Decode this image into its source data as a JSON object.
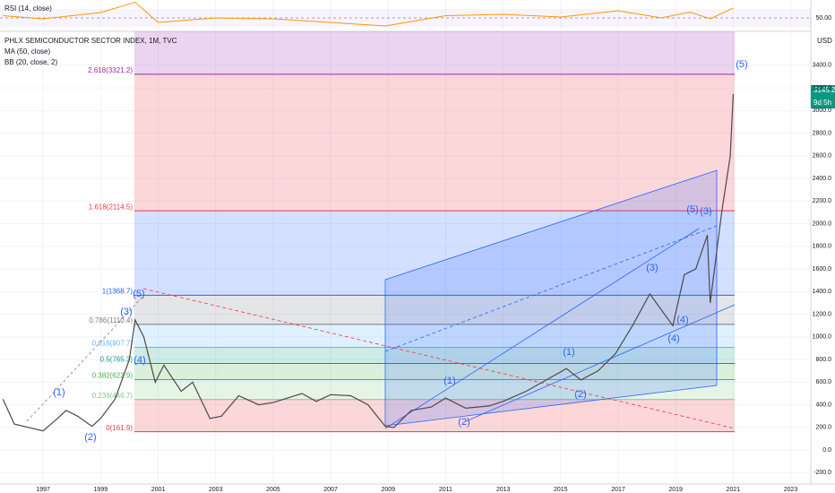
{
  "chart_data": {
    "type": "line",
    "title": "PHLX SEMICONDUCTOR SECTOR INDEX, 1M, TVC",
    "indicators": [
      "MA (50, close)",
      "BB (20, close, 2)"
    ],
    "currency": "USD",
    "countdown": "9d 5h",
    "color": "#4a4a4a",
    "x": [
      1995.6,
      1996,
      1996.5,
      1997,
      1997.5,
      1997.8,
      1998.2,
      1998.7,
      1999,
      1999.5,
      2000,
      2000.2,
      2000.5,
      2000.9,
      2001.2,
      2001.8,
      2002.2,
      2002.8,
      2003.2,
      2003.8,
      2004.5,
      2005,
      2005.5,
      2006,
      2006.5,
      2007,
      2007.7,
      2008.3,
      2008.9,
      2009.2,
      2009.8,
      2010.5,
      2011,
      2011.7,
      2012.5,
      2013,
      2013.8,
      2014.5,
      2015.2,
      2015.7,
      2016.3,
      2016.9,
      2017.5,
      2018.1,
      2018.9,
      2019.3,
      2019.7,
      2020.1,
      2020.2,
      2020.6,
      2020.9,
      2021.0
    ],
    "values": [
      450,
      230,
      200,
      170,
      280,
      350,
      300,
      210,
      280,
      450,
      800,
      1150,
      1000,
      600,
      750,
      520,
      600,
      280,
      300,
      480,
      400,
      420,
      460,
      500,
      430,
      490,
      480,
      400,
      210,
      200,
      350,
      380,
      460,
      370,
      390,
      430,
      520,
      620,
      720,
      620,
      700,
      850,
      1100,
      1380,
      1100,
      1550,
      1600,
      1900,
      1300,
      2100,
      2600,
      3145.2
    ],
    "xlim": [
      1995.5,
      2023.7
    ],
    "xticks": [
      1997,
      1999,
      2001,
      2003,
      2005,
      2007,
      2009,
      2011,
      2013,
      2015,
      2017,
      2019,
      2021,
      2023
    ],
    "ylim": [
      -300,
      3700
    ],
    "yticks": [
      {
        "value": -200,
        "label": "-200.0"
      },
      {
        "value": 0,
        "label": "0.0"
      },
      {
        "value": 200,
        "label": "200.0"
      },
      {
        "value": 400,
        "label": "400.0"
      },
      {
        "value": 600,
        "label": "600.0"
      },
      {
        "value": 800,
        "label": "800.0"
      },
      {
        "value": 1000,
        "label": "1000.0"
      },
      {
        "value": 1200,
        "label": "1200.0"
      },
      {
        "value": 1400,
        "label": "1400.0"
      },
      {
        "value": 1600,
        "label": "1600.0"
      },
      {
        "value": 1800,
        "label": "1800.0"
      },
      {
        "value": 2000,
        "label": "2000.0"
      },
      {
        "value": 2200,
        "label": "2200.0"
      },
      {
        "value": 2400,
        "label": "2400.0"
      },
      {
        "value": 2600,
        "label": "2600.0"
      },
      {
        "value": 2800,
        "label": "2800.0"
      },
      {
        "value": 3000,
        "label": "3000.0"
      },
      {
        "value": 3200,
        "label": "3200.0"
      },
      {
        "value": 3400,
        "label": "3400.0"
      }
    ],
    "grid": true,
    "fib_levels": [
      {
        "label": "0(161.9)",
        "value": 161.9,
        "color": "#f23645"
      },
      {
        "label": "0.236(446.7)",
        "value": 446.7,
        "color": "#81c784"
      },
      {
        "label": "0.382(622.9)",
        "value": 622.9,
        "color": "#4caf50"
      },
      {
        "label": "0.5(765.3)",
        "value": 765.3,
        "color": "#089981"
      },
      {
        "label": "0.618(907.7)",
        "value": 907.7,
        "color": "#64b5f6"
      },
      {
        "label": "0.786(1110.4)",
        "value": 1110.4,
        "color": "#787b86"
      },
      {
        "label": "1(1368.7)",
        "value": 1368.7,
        "color": "#2962ff"
      },
      {
        "label": "1.618(2114.5)",
        "value": 2114.5,
        "color": "#f23645"
      },
      {
        "label": "2.618(3321.2)",
        "value": 3321.2,
        "color": "#9c27b0"
      }
    ],
    "annotations": [
      "(1)",
      "(2)",
      "(3)",
      "(4)",
      "(5)",
      "(1)",
      "(2)",
      "(1)",
      "(2)",
      "(3)",
      "(4)",
      "(5)",
      "(3)",
      "(4)",
      "(5)"
    ],
    "rsi": {
      "title": "RSI (14, close)",
      "color": "#ff9800",
      "ylim": [
        20,
        90
      ],
      "yticks": [
        {
          "value": 50,
          "label": "50.00"
        }
      ],
      "x": [
        1995.6,
        1997,
        1999,
        2000.2,
        2001,
        2003,
        2005,
        2008.9,
        2011,
        2013,
        2015,
        2017,
        2018.5,
        2019.5,
        2020.2,
        2021.0
      ],
      "values": [
        55,
        48,
        62,
        85,
        40,
        50,
        48,
        32,
        55,
        58,
        52,
        66,
        50,
        63,
        48,
        72
      ]
    }
  }
}
